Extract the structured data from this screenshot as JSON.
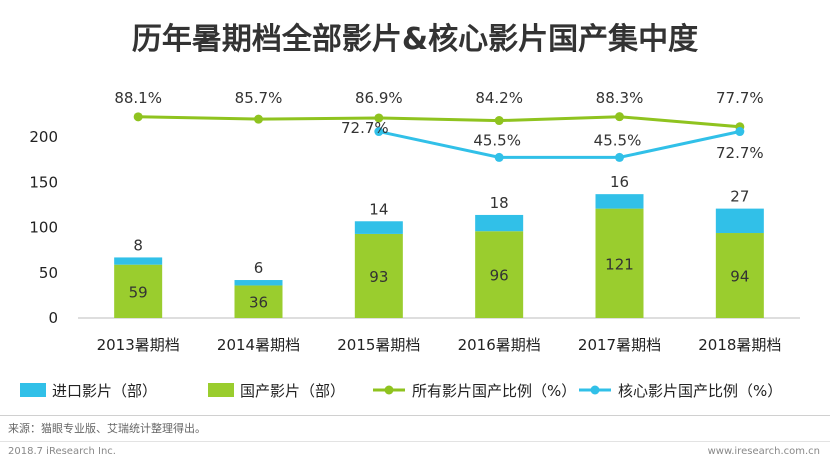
{
  "title": "历年暑期档全部影片&核心影片国产集中度",
  "chart_data": {
    "type": "bar+line",
    "categories": [
      "2013暑期档",
      "2014暑期档",
      "2015暑期档",
      "2016暑期档",
      "2017暑期档",
      "2018暑期档"
    ],
    "y_ticks": [
      0,
      50,
      100,
      150,
      200
    ],
    "ylim": [
      0,
      230
    ],
    "bar_series": [
      {
        "name": "国产影片（部）",
        "color": "#9acd2e",
        "values": [
          59,
          36,
          93,
          96,
          121,
          94
        ]
      },
      {
        "name": "进口影片（部）",
        "color": "#31c0e8",
        "values": [
          8,
          6,
          14,
          18,
          16,
          27
        ]
      }
    ],
    "line_series": [
      {
        "name": "所有影片国产比例（%）",
        "color": "#8fc31f",
        "values": [
          88.1,
          85.7,
          86.9,
          84.2,
          88.3,
          77.7
        ],
        "labels": [
          "88.1%",
          "85.7%",
          "86.9%",
          "84.2%",
          "88.3%",
          "77.7%"
        ]
      },
      {
        "name": "核心影片国产比例（%）",
        "color": "#31c0e8",
        "values": [
          null,
          null,
          72.7,
          45.5,
          45.5,
          72.7
        ],
        "labels": [
          "",
          "",
          "72.7%",
          "45.5%",
          "45.5%",
          "72.7%"
        ]
      }
    ]
  },
  "legend": [
    {
      "label": "进口影片（部）",
      "kind": "bar",
      "color": "#31c0e8"
    },
    {
      "label": "国产影片（部）",
      "kind": "bar",
      "color": "#9acd2e"
    },
    {
      "label": "所有影片国产比例（%）",
      "kind": "line",
      "color": "#8fc31f"
    },
    {
      "label": "核心影片国产比例（%）",
      "kind": "line",
      "color": "#31c0e8"
    }
  ],
  "footer": {
    "source": "来源：猫眼专业版、艾瑞统计整理得出。",
    "copyright": "2018.7 iResearch Inc.",
    "website": "www.iresearch.com.cn"
  }
}
